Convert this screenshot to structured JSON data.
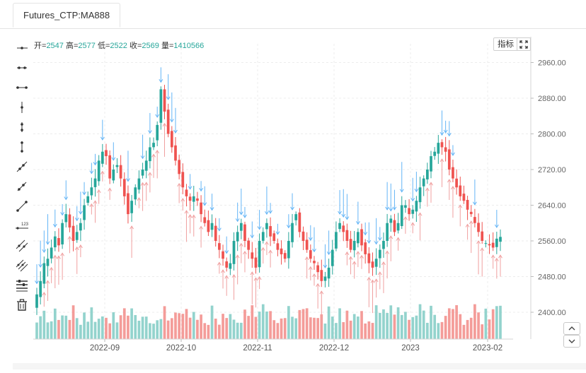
{
  "tab": {
    "label": "Futures_CTP:MA888"
  },
  "ohlc": {
    "open_label": "开",
    "open": "2547",
    "high_label": "高",
    "high": "2577",
    "low_label": "低",
    "low": "2522",
    "close_label": "收",
    "close": "2569",
    "volume_label": "量",
    "volume": "1410566"
  },
  "buttons": {
    "indicators": "指标"
  },
  "toolbar": {
    "tools": [
      "horizontal-ray-icon",
      "horizontal-segment-icon",
      "horizontal-line-icon",
      "vertical-ray-icon",
      "vertical-segment-icon",
      "vertical-line-icon",
      "trend-ray-icon",
      "trend-segment-icon",
      "trend-line-icon",
      "price-label-icon",
      "parallel-lines-icon",
      "fibonacci-icon",
      "settings-lines-icon",
      "trash-icon"
    ]
  },
  "colors": {
    "up": "#26a69a",
    "down": "#ef5350",
    "arrow_up": "#f0a0a0",
    "arrow_down": "#64b5f6"
  },
  "chart_data": {
    "type": "candlestick",
    "x_tick_labels": [
      "2022-09",
      "2022-10",
      "2022-11",
      "2022-12",
      "2023",
      "2023-02"
    ],
    "y_tick_labels": [
      "2400.00",
      "2480.00",
      "2560.00",
      "2640.00",
      "2720.00",
      "2800.00",
      "2880.00",
      "2960.00"
    ],
    "ylim": [
      2340,
      2978
    ],
    "grid": true,
    "close": [
      2440,
      2470,
      2510,
      2520,
      2545,
      2570,
      2550,
      2600,
      2620,
      2590,
      2560,
      2580,
      2600,
      2640,
      2660,
      2680,
      2700,
      2740,
      2760,
      2750,
      2700,
      2720,
      2730,
      2700,
      2660,
      2620,
      2650,
      2680,
      2700,
      2720,
      2740,
      2770,
      2780,
      2820,
      2900,
      2850,
      2800,
      2770,
      2740,
      2710,
      2680,
      2660,
      2650,
      2660,
      2650,
      2620,
      2600,
      2580,
      2600,
      2560,
      2540,
      2520,
      2500,
      2510,
      2560,
      2580,
      2600,
      2560,
      2540,
      2520,
      2500,
      2560,
      2580,
      2600,
      2570,
      2560,
      2540,
      2530,
      2520,
      2560,
      2600,
      2620,
      2580,
      2560,
      2540,
      2520,
      2510,
      2490,
      2470,
      2480,
      2500,
      2540,
      2580,
      2600,
      2580,
      2560,
      2540,
      2560,
      2580,
      2550,
      2530,
      2510,
      2500,
      2520,
      2540,
      2560,
      2600,
      2610,
      2580,
      2600,
      2640,
      2640,
      2620,
      2630,
      2650,
      2680,
      2700,
      2720,
      2750,
      2760,
      2780,
      2770,
      2760,
      2720,
      2700,
      2680,
      2660,
      2650,
      2630,
      2620,
      2600,
      2580,
      2560,
      2555,
      2550,
      2545,
      2565,
      2569
    ],
    "volume_axis_note": "volume bars shown in lower pane, unlabeled"
  }
}
